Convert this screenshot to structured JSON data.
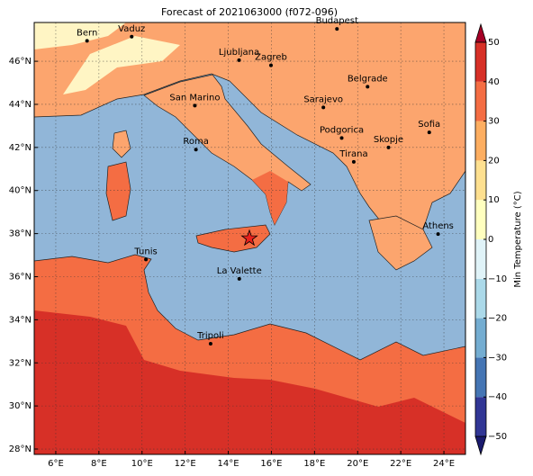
{
  "title": "Forecast of 2021063000 (f072-096)",
  "map": {
    "lonlim": [
      5,
      25
    ],
    "latlim": [
      27.75,
      47.8
    ],
    "lonticks": [
      {
        "value": 6,
        "label": "6°E"
      },
      {
        "value": 8,
        "label": "8°E"
      },
      {
        "value": 10,
        "label": "10°E"
      },
      {
        "value": 12,
        "label": "12°E"
      },
      {
        "value": 14,
        "label": "14°E"
      },
      {
        "value": 16,
        "label": "16°E"
      },
      {
        "value": 18,
        "label": "18°E"
      },
      {
        "value": 20,
        "label": "20°E"
      },
      {
        "value": 22,
        "label": "22°E"
      },
      {
        "value": 24,
        "label": "24°E"
      }
    ],
    "latticks": [
      {
        "value": 28,
        "label": "28°N"
      },
      {
        "value": 30,
        "label": "30°N"
      },
      {
        "value": 32,
        "label": "32°N"
      },
      {
        "value": 34,
        "label": "34°N"
      },
      {
        "value": 36,
        "label": "36°N"
      },
      {
        "value": 38,
        "label": "38°N"
      },
      {
        "value": 40,
        "label": "40°N"
      },
      {
        "value": 42,
        "label": "42°N"
      },
      {
        "value": 44,
        "label": "44°N"
      },
      {
        "value": 46,
        "label": "46°N"
      }
    ],
    "grid": true
  },
  "cities": [
    {
      "name": "Bern",
      "lon": 7.45,
      "lat": 46.95
    },
    {
      "name": "Vaduz",
      "lon": 9.52,
      "lat": 47.14
    },
    {
      "name": "Budapest",
      "lon": 19.04,
      "lat": 47.5
    },
    {
      "name": "Ljubljana",
      "lon": 14.5,
      "lat": 46.05
    },
    {
      "name": "Zagreb",
      "lon": 15.98,
      "lat": 45.81
    },
    {
      "name": "Belgrade",
      "lon": 20.46,
      "lat": 44.82
    },
    {
      "name": "San Marino",
      "lon": 12.45,
      "lat": 43.94
    },
    {
      "name": "Sarajevo",
      "lon": 18.41,
      "lat": 43.86
    },
    {
      "name": "Sofia",
      "lon": 23.32,
      "lat": 42.7
    },
    {
      "name": "Podgorica",
      "lon": 19.26,
      "lat": 42.44
    },
    {
      "name": "Skopje",
      "lon": 21.43,
      "lat": 42.0
    },
    {
      "name": "Roma",
      "lon": 12.5,
      "lat": 41.9
    },
    {
      "name": "Tirana",
      "lon": 19.82,
      "lat": 41.33
    },
    {
      "name": "Athens",
      "lon": 23.73,
      "lat": 37.98
    },
    {
      "name": "Tunis",
      "lon": 10.18,
      "lat": 36.8
    },
    {
      "name": "La Valette",
      "lon": 14.51,
      "lat": 35.9
    },
    {
      "name": "Tripoli",
      "lon": 13.18,
      "lat": 32.89
    }
  ],
  "marker": {
    "lon": 14.98,
    "lat": 37.78,
    "color": "#e8211c"
  },
  "colorbar": {
    "label": "Min Temperature (°C)",
    "lim": [
      -50,
      50
    ],
    "ticks": [
      {
        "value": -50,
        "label": "−50"
      },
      {
        "value": -40,
        "label": "−40"
      },
      {
        "value": -30,
        "label": "−30"
      },
      {
        "value": -20,
        "label": "−20"
      },
      {
        "value": -10,
        "label": "−10"
      },
      0,
      10,
      20,
      30,
      40,
      50
    ],
    "colors": [
      "#313695",
      "#4575b4",
      "#74add1",
      "#abd9e9",
      "#e0f3f8",
      "#ffffbf",
      "#fee090",
      "#fdae61",
      "#f46d43",
      "#d73027"
    ]
  }
}
